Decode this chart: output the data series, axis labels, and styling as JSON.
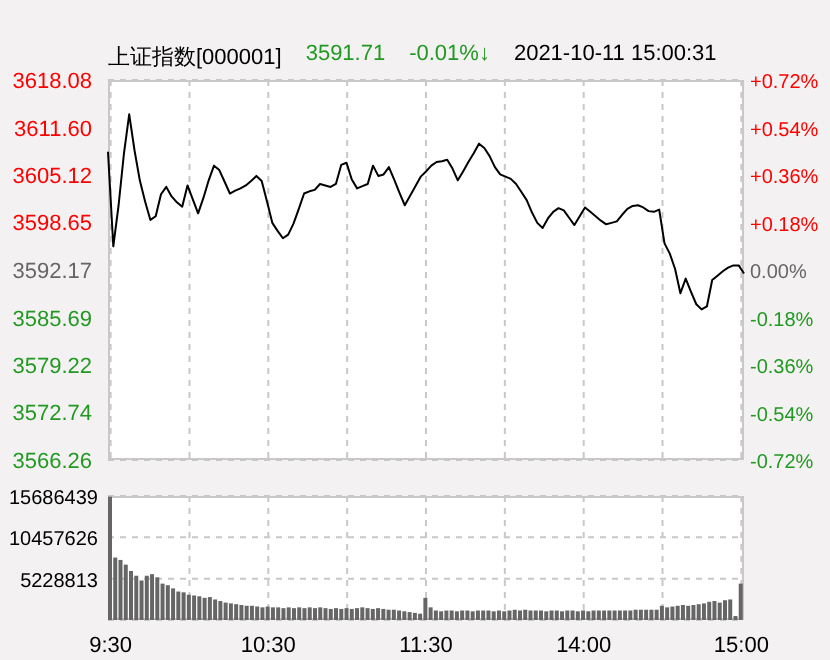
{
  "chart_data": [
    {
      "type": "line",
      "title": "上证指数[000001]",
      "subtitle": "2021-10-11 15:00:31",
      "annotations": [
        "3591.71",
        "-0.01%↓"
      ],
      "categories": [
        null,
        null,
        null,
        null,
        null,
        null,
        null,
        null,
        null,
        null,
        null,
        null,
        null,
        null,
        null,
        null,
        null,
        null,
        null,
        null,
        null,
        null,
        null,
        null,
        null,
        null,
        null,
        null,
        null,
        null,
        null,
        null,
        null,
        null,
        null,
        null,
        null,
        null,
        null,
        null,
        null,
        null,
        null,
        null,
        null,
        null,
        null,
        null,
        null,
        null,
        null,
        null,
        null,
        null,
        null,
        null,
        null,
        null,
        null,
        null,
        null,
        null,
        null,
        null,
        null,
        null,
        null,
        null,
        null,
        null,
        null,
        null,
        null,
        null,
        null,
        null,
        null,
        null,
        null,
        null,
        null,
        null,
        null,
        null,
        null,
        null,
        null,
        null,
        null,
        null,
        null,
        null,
        null,
        null,
        null,
        null,
        null,
        null,
        null,
        null,
        null,
        null,
        null,
        null,
        null,
        null,
        null,
        null,
        null,
        null,
        null,
        null,
        null,
        null,
        null,
        null,
        null,
        null,
        null,
        null,
        null
      ],
      "series": [
        {
          "color": "#000000",
          "values": [
            3608.3,
            3595.4,
            3601.0,
            3608.0,
            3613.4,
            3608.5,
            3604.4,
            3601.5,
            3599.0,
            3599.5,
            3602.5,
            3603.5,
            3602.2,
            3601.4,
            3600.8,
            3603.7,
            3601.8,
            3599.9,
            3602.0,
            3604.4,
            3606.4,
            3605.8,
            3604.2,
            3602.6,
            3603.0,
            3603.3,
            3603.7,
            3604.3,
            3605.0,
            3604.3,
            3601.5,
            3598.6,
            3597.5,
            3596.5,
            3597.0,
            3598.5,
            3600.5,
            3602.6,
            3602.9,
            3603.1,
            3603.9,
            3603.7,
            3603.5,
            3603.9,
            3606.5,
            3606.8,
            3604.5,
            3603.3,
            3603.6,
            3603.9,
            3606.4,
            3605.0,
            3605.2,
            3606.2,
            3604.5,
            3602.7,
            3601.0,
            3602.3,
            3603.6,
            3604.9,
            3605.6,
            3606.4,
            3606.9,
            3607.0,
            3607.2,
            3606.0,
            3604.4,
            3605.6,
            3606.9,
            3608.1,
            3609.4,
            3608.8,
            3607.7,
            3606.2,
            3605.2,
            3604.9,
            3604.6,
            3603.9,
            3602.8,
            3601.7,
            3600.0,
            3598.6,
            3597.9,
            3599.2,
            3600.1,
            3600.6,
            3600.3,
            3599.3,
            3598.3,
            3599.5,
            3600.7,
            3600.1,
            3599.5,
            3598.9,
            3598.4,
            3598.6,
            3598.8,
            3599.7,
            3600.5,
            3600.9,
            3601.0,
            3600.7,
            3600.2,
            3600.1,
            3600.4,
            3595.8,
            3594.4,
            3592.3,
            3589.0,
            3591.0,
            3589.2,
            3587.5,
            3586.8,
            3587.2,
            3590.8,
            3591.4,
            3592.0,
            3592.5,
            3592.8,
            3592.8,
            3591.7
          ]
        }
      ],
      "ylim": [
        3566.26,
        3618.08
      ],
      "yticks": [
        3566.26,
        3572.74,
        3579.22,
        3585.69,
        3592.17,
        3598.65,
        3605.12,
        {
          "value": 3611.6,
          "label": "3611.60"
        },
        3618.08
      ],
      "y2lim": [
        -0.72,
        0.72
      ],
      "y2ticks": [
        {
          "value": -0.72,
          "label": "-0.72%"
        },
        {
          "value": -0.54,
          "label": "-0.54%"
        },
        {
          "value": -0.36,
          "label": "-0.36%"
        },
        {
          "value": -0.18,
          "label": "-0.18%"
        },
        {
          "value": 0,
          "label": "0.00%"
        },
        {
          "value": 0.18,
          "label": "+0.18%"
        },
        {
          "value": 0.36,
          "label": "+0.36%"
        },
        {
          "value": 0.54,
          "label": "+0.54%"
        },
        {
          "value": 0.72,
          "label": "+0.72%"
        }
      ],
      "grid": true,
      "tick_labels": "y",
      "marker": "none",
      "line_style": "solid"
    },
    {
      "type": "bar",
      "color": "#666666",
      "categories": [
        "9:30",
        null,
        null,
        null,
        null,
        null,
        null,
        null,
        null,
        null,
        null,
        null,
        null,
        null,
        null,
        null,
        null,
        null,
        null,
        null,
        null,
        null,
        null,
        null,
        null,
        null,
        null,
        null,
        null,
        null,
        "10:30",
        null,
        null,
        null,
        null,
        null,
        null,
        null,
        null,
        null,
        null,
        null,
        null,
        null,
        null,
        null,
        null,
        null,
        null,
        null,
        null,
        null,
        null,
        null,
        null,
        null,
        null,
        null,
        null,
        null,
        "11:30",
        null,
        null,
        null,
        null,
        null,
        null,
        null,
        null,
        null,
        null,
        null,
        null,
        null,
        null,
        null,
        null,
        null,
        null,
        null,
        null,
        null,
        null,
        null,
        null,
        null,
        null,
        null,
        null,
        null,
        "14:00",
        null,
        null,
        null,
        null,
        null,
        null,
        null,
        null,
        null,
        null,
        null,
        null,
        null,
        null,
        null,
        null,
        null,
        null,
        null,
        null,
        null,
        null,
        null,
        null,
        null,
        null,
        null,
        null,
        null,
        "15:00"
      ],
      "values": [
        15600000,
        7900000,
        7600000,
        7000000,
        6200000,
        5600000,
        5000000,
        5600000,
        5800000,
        5400000,
        4600000,
        4400000,
        4000000,
        3600000,
        3500000,
        3200000,
        3100000,
        3000000,
        2800000,
        2900000,
        2600000,
        2400000,
        2200000,
        2100000,
        2000000,
        1900000,
        1800000,
        1800000,
        1700000,
        1600000,
        1700000,
        1600000,
        1600000,
        1500000,
        1600000,
        1500000,
        1600000,
        1500000,
        1600000,
        1500000,
        1600000,
        1500000,
        1400000,
        1500000,
        1400000,
        1500000,
        1400000,
        1500000,
        1600000,
        1500000,
        1400000,
        1500000,
        1400000,
        1300000,
        1300000,
        1200000,
        1100000,
        1000000,
        900000,
        800000,
        2800000,
        1600000,
        1200000,
        1100000,
        1200000,
        1200000,
        1100000,
        1200000,
        1200000,
        1100000,
        1200000,
        1200000,
        1200000,
        1100000,
        1200000,
        1100000,
        1200000,
        1300000,
        1200000,
        1300000,
        1200000,
        1200000,
        1200000,
        1100000,
        1200000,
        1200000,
        1100000,
        1200000,
        1200000,
        1100000,
        1200000,
        1100000,
        1200000,
        1200000,
        1200000,
        1200000,
        1200000,
        1200000,
        1200000,
        1200000,
        1300000,
        1300000,
        1300000,
        1300000,
        1300000,
        1800000,
        1600000,
        1700000,
        1800000,
        1900000,
        1800000,
        1900000,
        2000000,
        2100000,
        2300000,
        2400000,
        2200000,
        2500000,
        2600000,
        500000,
        4600000
      ],
      "ylim": [
        0,
        15686439
      ],
      "yticks": [
        5228813,
        10457626,
        15686439
      ],
      "grid": true
    }
  ]
}
